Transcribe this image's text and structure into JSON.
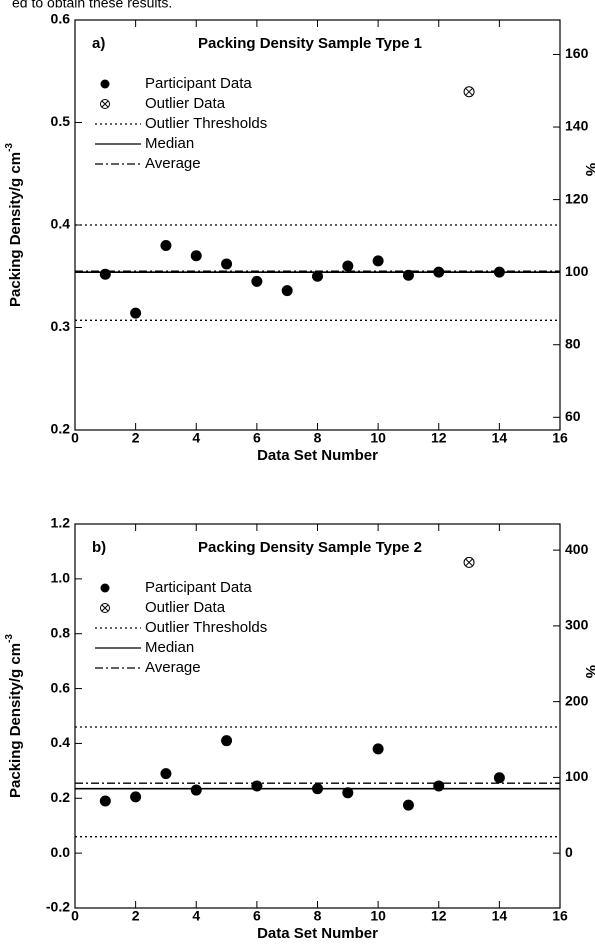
{
  "header_text": "ed to obtain these results.",
  "chart_data": [
    {
      "type": "scatter",
      "panel_label": "a)",
      "title": "Packing Density Sample Type 1",
      "xlabel": "Data Set Number",
      "ylabel": "Packing Density/g cm",
      "ylabel_superscript": "-3",
      "y2label": "%",
      "xlim": [
        0,
        16
      ],
      "xticks": [
        0,
        2,
        4,
        6,
        8,
        10,
        12,
        14,
        16
      ],
      "ylim": [
        0.2,
        0.6
      ],
      "yticks": [
        0.2,
        0.3,
        0.4,
        0.5,
        0.6
      ],
      "y2lim": [
        56.5,
        169.5
      ],
      "y2ticks": [
        60,
        80,
        100,
        120,
        140,
        160
      ],
      "series": [
        {
          "name": "Participant Data",
          "marker": "filled-circle",
          "color": "#000000",
          "x": [
            1,
            2,
            3,
            4,
            5,
            6,
            7,
            8,
            9,
            10,
            11,
            12,
            14
          ],
          "values": [
            0.352,
            0.314,
            0.38,
            0.37,
            0.362,
            0.345,
            0.336,
            0.35,
            0.36,
            0.365,
            0.351,
            0.354,
            0.354
          ]
        },
        {
          "name": "Outlier Data",
          "marker": "circle-x",
          "color": "#000000",
          "x": [
            13
          ],
          "values": [
            0.53
          ]
        },
        {
          "name": "Outlier Thresholds",
          "style": "dotted",
          "color": "#000000",
          "values": [
            0.4,
            0.307
          ]
        },
        {
          "name": "Median",
          "style": "solid",
          "color": "#000000",
          "values": [
            0.354
          ]
        },
        {
          "name": "Average",
          "style": "dashdot",
          "color": "#000000",
          "values": [
            0.355
          ]
        }
      ]
    },
    {
      "type": "scatter",
      "panel_label": "b)",
      "title": "Packing Density Sample Type 2",
      "xlabel": "Data Set Number",
      "ylabel": "Packing Density/g cm",
      "ylabel_superscript": "-3",
      "y2label": "%",
      "xlim": [
        0,
        16
      ],
      "xticks": [
        0,
        2,
        4,
        6,
        8,
        10,
        12,
        14,
        16
      ],
      "ylim": [
        -0.2,
        1.2
      ],
      "yticks": [
        -0.2,
        {
          "value": 0,
          "label": "0.0"
        },
        0.2,
        0.4,
        0.6,
        0.8,
        {
          "value": 1,
          "label": "1.0"
        },
        1.2
      ],
      "y2lim": [
        -72.4,
        434.5
      ],
      "y2ticks": [
        0,
        100,
        200,
        300,
        400
      ],
      "series": [
        {
          "name": "Participant Data",
          "marker": "filled-circle",
          "color": "#000000",
          "x": [
            1,
            2,
            3,
            4,
            5,
            6,
            8,
            9,
            10,
            11,
            12,
            14
          ],
          "values": [
            0.19,
            0.205,
            0.29,
            0.23,
            0.41,
            0.245,
            0.235,
            0.22,
            0.38,
            0.175,
            0.245,
            0.275
          ]
        },
        {
          "name": "Outlier Data",
          "marker": "circle-x",
          "color": "#000000",
          "x": [
            13
          ],
          "values": [
            1.06
          ]
        },
        {
          "name": "Outlier Thresholds",
          "style": "dotted",
          "color": "#000000",
          "values": [
            0.46,
            0.06
          ]
        },
        {
          "name": "Median",
          "style": "solid",
          "color": "#000000",
          "values": [
            0.235
          ]
        },
        {
          "name": "Average",
          "style": "dashdot",
          "color": "#000000",
          "values": [
            0.255
          ]
        }
      ]
    }
  ]
}
